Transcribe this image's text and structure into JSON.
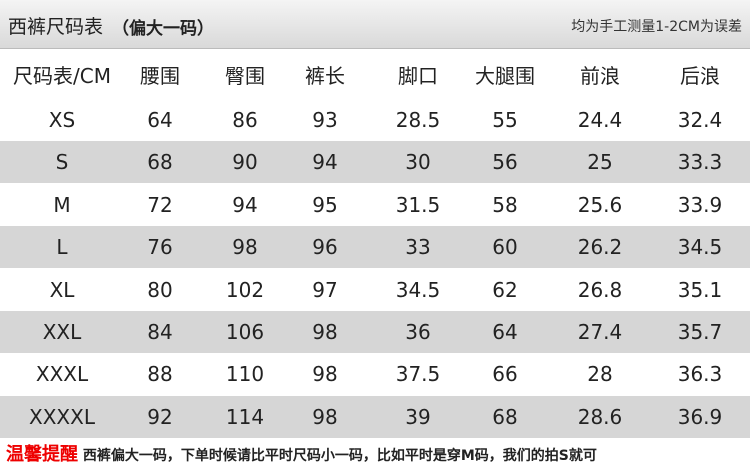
{
  "header": {
    "title": "西裤尺码表",
    "subtitle": "（偏大一码）",
    "note": "均为手工测量1-2CM为误差"
  },
  "table": {
    "columns": [
      "尺码表/CM",
      "腰围",
      "臀围",
      "裤长",
      "脚口",
      "大腿围",
      "前浪",
      "后浪"
    ],
    "rows": [
      [
        "XS",
        "64",
        "86",
        "93",
        "28.5",
        "55",
        "24.4",
        "32.4"
      ],
      [
        "S",
        "68",
        "90",
        "94",
        "30",
        "56",
        "25",
        "33.3"
      ],
      [
        "M",
        "72",
        "94",
        "95",
        "31.5",
        "58",
        "25.6",
        "33.9"
      ],
      [
        "L",
        "76",
        "98",
        "96",
        "33",
        "60",
        "26.2",
        "34.5"
      ],
      [
        "XL",
        "80",
        "102",
        "97",
        "34.5",
        "62",
        "26.8",
        "35.1"
      ],
      [
        "XXL",
        "84",
        "106",
        "98",
        "36",
        "64",
        "27.4",
        "35.7"
      ],
      [
        "XXXL",
        "88",
        "110",
        "98",
        "37.5",
        "66",
        "28",
        "36.3"
      ],
      [
        "XXXXL",
        "92",
        "114",
        "98",
        "39",
        "68",
        "28.6",
        "36.9"
      ]
    ]
  },
  "footer": {
    "highlight": "温馨提醒",
    "text": "西裤偏大一码，下单时候请比平时尺码小一码，比如平时是穿M码，我们的拍S就可"
  }
}
